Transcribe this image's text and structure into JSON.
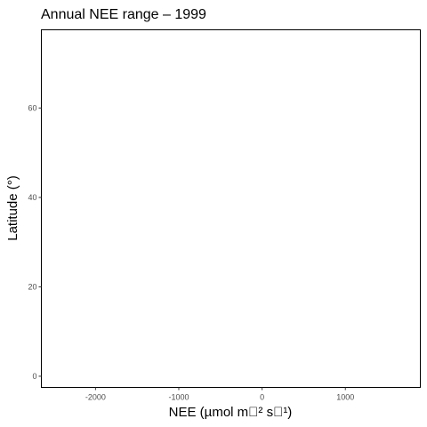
{
  "chart_data": {
    "type": "scatter",
    "title": "Annual NEE range – 1999",
    "xlabel": "NEE (µmol m\u0000² s\u0000¹)",
    "ylabel": "Latitude (°)",
    "x_ticks": [
      -2000,
      -1000,
      0,
      1000
    ],
    "y_ticks": [
      0,
      20,
      40,
      60
    ],
    "xlim": [
      -2650,
      1900
    ],
    "ylim": [
      -2.5,
      77.5
    ],
    "grid": false,
    "legend": "none",
    "series": [],
    "colors": {
      "background": "#ffffff",
      "panel_border": "#000000",
      "tick_text": "#4d4d4d",
      "text": "#000000"
    }
  }
}
